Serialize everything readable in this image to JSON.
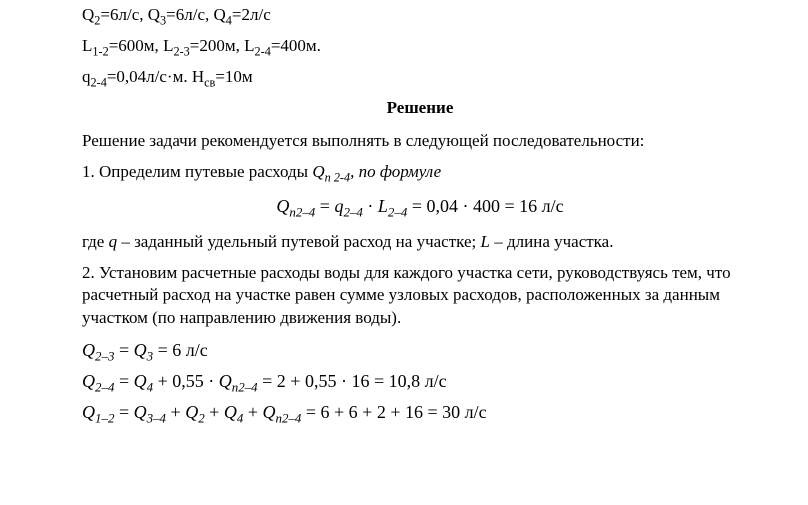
{
  "given": {
    "line1_a": "Q",
    "line1_a_sub": "2",
    "line1_a_val": "=6л/с, ",
    "line1_b": "Q",
    "line1_b_sub": "3",
    "line1_b_val": "=6л/с, ",
    "line1_c": "Q",
    "line1_c_sub": "4",
    "line1_c_val": "=2л/с",
    "line2_a": "L",
    "line2_a_sub": "1-2",
    "line2_a_val": "=600м, ",
    "line2_b": "L",
    "line2_b_sub": "2-3",
    "line2_b_val": "=200м, ",
    "line2_c": "L",
    "line2_c_sub": "2-4",
    "line2_c_val": "=400м.",
    "line3_a": "q",
    "line3_a_sub": "2-4",
    "line3_a_val": "=0,04л/с·м. ",
    "line3_b": "H",
    "line3_b_sub": "св",
    "line3_b_val": "=10м"
  },
  "heading": "Решение",
  "p1": "Решение задачи рекомендуется выполнять в следующей последовательности:",
  "s1_pre": "1. Определим путевые расходы ",
  "s1_sym": "Q",
  "s1_sub": "п 2-4",
  "s1_post": ", по формуле",
  "formula": {
    "lhs_sym": "Q",
    "lhs_sub": "п2–4",
    "eq1": " = ",
    "r1_sym": "q",
    "r1_sub": "2–4",
    "dot1": " · ",
    "r2_sym": "L",
    "r2_sub": "2–4",
    "eq2": " = 0,04 · 400 = 16 ",
    "unit": "л/с"
  },
  "p_where_pre": "где ",
  "p_where_q": "q",
  "p_where_mid": " – заданный удельный путевой расход на участке; ",
  "p_where_L": "L",
  "p_where_post": " – длина участка.",
  "s2": "2. Установим расчетные расходы воды для каждого участка сети, руководствуясь тем, что расчетный расход на участке равен сумме узловых расходов, расположенных за данным участком (по направлению движения воды).",
  "eq1": {
    "lhs": "Q",
    "lsub": "2–3",
    "mid": " = ",
    "r": "Q",
    "rsub": "3",
    "tail": " = 6 ",
    "unit": "л/с"
  },
  "eq2": {
    "lhs": "Q",
    "lsub": "2–4",
    "mid": " = ",
    "a": "Q",
    "asub": "4",
    "plus1": " + 0,55 · ",
    "b": "Q",
    "bsub": "п2–4",
    "tail": " = 2 + 0,55 · 16 = 10,8  ",
    "unit": "л/с"
  },
  "eq3": {
    "lhs": "Q",
    "lsub": "1–2",
    "mid": " = ",
    "a": "Q",
    "asub": "3–4",
    "p1": " + ",
    "b": "Q",
    "bsub": "2",
    "p2": " + ",
    "c": "Q",
    "csub": "4",
    "p3": " + ",
    "d": "Q",
    "dsub": "п2–4",
    "tail": " = 6 + 6 + 2 + 16 = 30  ",
    "unit": "л/с"
  }
}
